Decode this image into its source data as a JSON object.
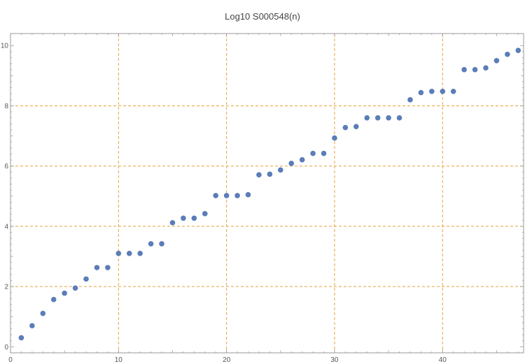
{
  "chart_data": {
    "type": "scatter",
    "title": "Log10 S000548(n)",
    "xlabel": "",
    "ylabel": "",
    "xlim": [
      0,
      47.5
    ],
    "ylim": [
      -0.2,
      10.4
    ],
    "xticks": [
      0,
      10,
      20,
      30,
      40
    ],
    "yticks": [
      0,
      2,
      4,
      6,
      8,
      10
    ],
    "major_grid_x": [
      10,
      20,
      30,
      40
    ],
    "major_grid_y": [
      2,
      4,
      6,
      8
    ],
    "grid": true,
    "grid_color": "#e8a13a",
    "point_color": "#5b7db8",
    "frame_color": "#9a9a9a",
    "series": [
      {
        "x": [
          1,
          2,
          3,
          4,
          5,
          6,
          7,
          8,
          9,
          10,
          11,
          12,
          13,
          14,
          15,
          16,
          17,
          18,
          19,
          20,
          21,
          22,
          23,
          24,
          25,
          26,
          27,
          28,
          29,
          30,
          31,
          32,
          33,
          34,
          35,
          36,
          37,
          38,
          39,
          40,
          41,
          42,
          43,
          44,
          45,
          46,
          47
        ],
        "y": [
          0.3,
          0.7,
          1.11,
          1.57,
          1.78,
          1.95,
          2.25,
          2.63,
          2.63,
          3.1,
          3.1,
          3.1,
          3.42,
          3.42,
          4.12,
          4.27,
          4.27,
          4.42,
          5.02,
          5.02,
          5.02,
          5.05,
          5.71,
          5.73,
          5.87,
          6.09,
          6.21,
          6.42,
          6.42,
          6.93,
          7.28,
          7.31,
          7.6,
          7.6,
          7.6,
          7.6,
          8.2,
          8.44,
          8.48,
          8.48,
          8.48,
          9.2,
          9.2,
          9.26,
          9.5,
          9.71,
          9.84
        ]
      }
    ]
  }
}
